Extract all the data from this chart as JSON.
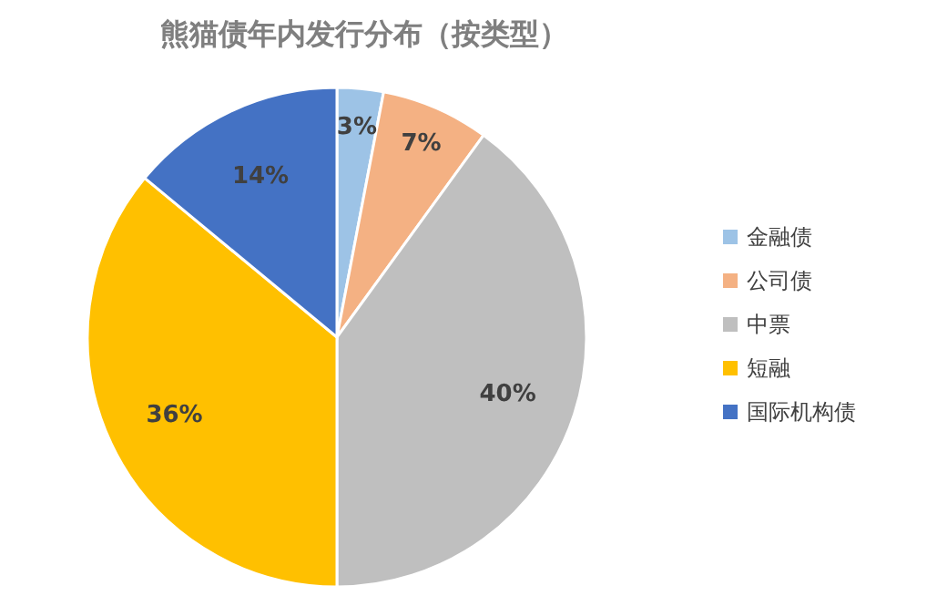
{
  "chart_data": {
    "type": "pie",
    "title": "熊猫债年内发行分布（按类型）",
    "categories": [
      "金融债",
      "公司债",
      "中票",
      "短融",
      "国际机构债"
    ],
    "values": [
      3,
      7,
      40,
      36,
      14
    ],
    "colors": [
      "#9dc3e6",
      "#f4b183",
      "#bfbfbf",
      "#ffc000",
      "#4472c4"
    ],
    "value_labels": [
      "3%",
      "7%",
      "40%",
      "36%",
      "14%"
    ],
    "legend": "right"
  }
}
